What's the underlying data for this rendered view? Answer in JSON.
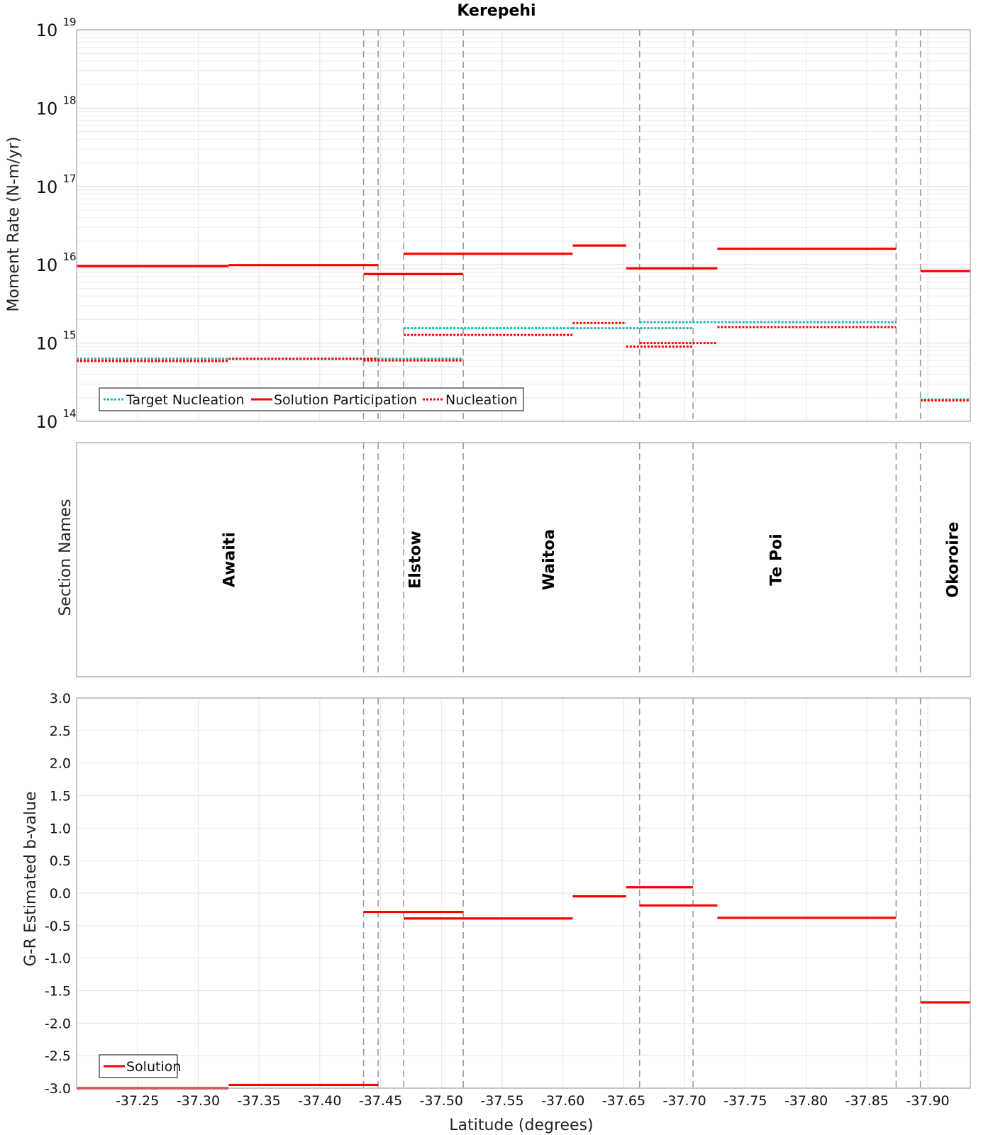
{
  "chart_data": {
    "title": "Kerepehi",
    "type": "line",
    "x_axis": {
      "label": "Latitude (degrees)",
      "range": [
        -37.2,
        -37.935
      ],
      "ticks": [
        -37.25,
        -37.3,
        -37.35,
        -37.4,
        -37.45,
        -37.5,
        -37.55,
        -37.6,
        -37.65,
        -37.7,
        -37.75,
        -37.8,
        -37.85,
        -37.9
      ],
      "tick_labels": [
        "-37.25",
        "-37.30",
        "-37.35",
        "-37.40",
        "-37.45",
        "-37.50",
        "-37.55",
        "-37.60",
        "-37.65",
        "-37.70",
        "-37.75",
        "-37.80",
        "-37.85",
        "-37.90"
      ]
    },
    "section_boundaries": [
      -37.436,
      -37.448,
      -37.469,
      -37.518,
      -37.663,
      -37.707,
      -37.874,
      -37.894
    ],
    "moment_panel": {
      "ylabel": "Moment Rate (N-m/yr)",
      "scale": "log",
      "ylim_exp": [
        14,
        19
      ],
      "y_ticks": [
        {
          "base": "10",
          "exp": "14"
        },
        {
          "base": "10",
          "exp": "15"
        },
        {
          "base": "10",
          "exp": "16"
        },
        {
          "base": "10",
          "exp": "17"
        },
        {
          "base": "10",
          "exp": "18"
        },
        {
          "base": "10",
          "exp": "19"
        }
      ],
      "legend": {
        "position": "bottom-left",
        "entries": [
          {
            "label": "Target Nucleation",
            "color": "#1fb0b0",
            "style": "dotted"
          },
          {
            "label": "Solution Participation",
            "color": "#ff0000",
            "style": "solid"
          },
          {
            "label": "Nucleation",
            "color": "#ff0000",
            "style": "dotted"
          }
        ]
      },
      "series": [
        {
          "name": "Target Nucleation",
          "color": "#1fb0b0",
          "style": "dotted",
          "segments": [
            {
              "x1": -37.2,
              "x2": -37.325,
              "y": 630000000000000.0
            },
            {
              "x1": -37.325,
              "x2": -37.448,
              "y": 630000000000000.0
            },
            {
              "x1": -37.436,
              "x2": -37.518,
              "y": 630000000000000.0
            },
            {
              "x1": -37.469,
              "x2": -37.608,
              "y": 1550000000000000.0
            },
            {
              "x1": -37.608,
              "x2": -37.707,
              "y": 1550000000000000.0
            },
            {
              "x1": -37.663,
              "x2": -37.874,
              "y": 1850000000000000.0
            },
            {
              "x1": -37.894,
              "x2": -37.935,
              "y": 190000000000000.0
            }
          ]
        },
        {
          "name": "Solution Participation",
          "color": "#ff0000",
          "style": "solid",
          "segments": [
            {
              "x1": -37.2,
              "x2": -37.325,
              "y": 9600000000000000.0
            },
            {
              "x1": -37.325,
              "x2": -37.448,
              "y": 9900000000000000.0
            },
            {
              "x1": -37.436,
              "x2": -37.518,
              "y": 7600000000000000.0
            },
            {
              "x1": -37.469,
              "x2": -37.608,
              "y": 1.38e+16
            },
            {
              "x1": -37.608,
              "x2": -37.652,
              "y": 1.76e+16
            },
            {
              "x1": -37.652,
              "x2": -37.727,
              "y": 9000000000000000.0
            },
            {
              "x1": -37.727,
              "x2": -37.874,
              "y": 1.6e+16
            },
            {
              "x1": -37.894,
              "x2": -37.935,
              "y": 8300000000000000.0
            }
          ]
        },
        {
          "name": "Nucleation",
          "color": "#ff0000",
          "style": "dotted",
          "segments": [
            {
              "x1": -37.2,
              "x2": -37.325,
              "y": 590000000000000.0
            },
            {
              "x1": -37.325,
              "x2": -37.448,
              "y": 630000000000000.0
            },
            {
              "x1": -37.436,
              "x2": -37.518,
              "y": 600000000000000.0
            },
            {
              "x1": -37.469,
              "x2": -37.608,
              "y": 1270000000000000.0
            },
            {
              "x1": -37.608,
              "x2": -37.652,
              "y": 1800000000000000.0
            },
            {
              "x1": -37.652,
              "x2": -37.707,
              "y": 900000000000000.0
            },
            {
              "x1": -37.663,
              "x2": -37.727,
              "y": 1000000000000000.0
            },
            {
              "x1": -37.727,
              "x2": -37.874,
              "y": 1600000000000000.0
            },
            {
              "x1": -37.894,
              "x2": -37.935,
              "y": 185000000000000.0
            }
          ]
        }
      ]
    },
    "names_panel": {
      "ylabel": "Section Names",
      "sections": [
        {
          "name": "Awaiti",
          "x": -37.325
        },
        {
          "name": "Elstow",
          "x": -37.478
        },
        {
          "name": "Waitoa",
          "x": -37.588
        },
        {
          "name": "Te Poi",
          "x": -37.775
        },
        {
          "name": "Okoroire",
          "x": -37.92
        }
      ]
    },
    "bvalue_panel": {
      "ylabel": "G-R Estimated b-value",
      "ylim": [
        -3.0,
        3.0
      ],
      "y_ticks": [
        3.0,
        2.5,
        2.0,
        1.5,
        1.0,
        0.5,
        0.0,
        -0.5,
        -1.0,
        -1.5,
        -2.0,
        -2.5,
        -3.0
      ],
      "y_tick_labels": [
        "3.0",
        "2.5",
        "2.0",
        "1.5",
        "1.0",
        "0.5",
        "0.0",
        "-0.5",
        "-1.0",
        "-1.5",
        "-2.0",
        "-2.5",
        "-3.0"
      ],
      "legend": {
        "position": "bottom-left",
        "entries": [
          {
            "label": "Solution",
            "color": "#ff0000",
            "style": "solid"
          }
        ]
      },
      "series": [
        {
          "name": "Solution",
          "color": "#ff0000",
          "style": "solid",
          "segments": [
            {
              "x1": -37.2,
              "x2": -37.325,
              "y": -3.0
            },
            {
              "x1": -37.325,
              "x2": -37.448,
              "y": -2.95
            },
            {
              "x1": -37.436,
              "x2": -37.518,
              "y": -0.29
            },
            {
              "x1": -37.469,
              "x2": -37.608,
              "y": -0.39
            },
            {
              "x1": -37.608,
              "x2": -37.652,
              "y": -0.05
            },
            {
              "x1": -37.652,
              "x2": -37.707,
              "y": 0.09
            },
            {
              "x1": -37.663,
              "x2": -37.727,
              "y": -0.19
            },
            {
              "x1": -37.727,
              "x2": -37.874,
              "y": -0.38
            },
            {
              "x1": -37.894,
              "x2": -37.935,
              "y": -1.68
            }
          ]
        }
      ]
    }
  }
}
